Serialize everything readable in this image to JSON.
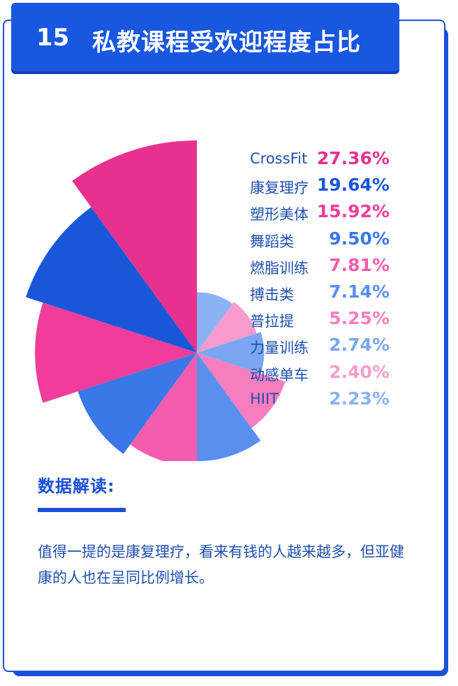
{
  "header": {
    "number": "15",
    "title": "私教课程受欢迎程度占比"
  },
  "chart_data": {
    "type": "pie",
    "variant": "rose",
    "categories": [
      "CrossFit",
      "康复理疗",
      "塑形美体",
      "舞蹈类",
      "燃脂训练",
      "搏击类",
      "普拉提",
      "力量训练",
      "动感单车",
      "HIIT"
    ],
    "values": [
      27.36,
      19.64,
      15.92,
      9.5,
      7.81,
      7.14,
      5.25,
      2.74,
      2.4,
      2.23
    ],
    "labels": [
      "27.36%",
      "19.64%",
      "15.92%",
      "9.50%",
      "7.81%",
      "7.14%",
      "5.25%",
      "2.74%",
      "2.40%",
      "2.23%"
    ],
    "unit": "%",
    "colors": [
      "#e8318f",
      "#1a57d8",
      "#f03d9c",
      "#3a78e8",
      "#f45cae",
      "#5a8ff0",
      "#f77fbf",
      "#7aa6f2",
      "#f79ccd",
      "#8bb2f4"
    ]
  },
  "analysis": {
    "heading": "数据解读:",
    "text": "值得一提的是康复理疗，看来有钱的人越来越多，但亚健康的人也在呈同比例增长。"
  }
}
